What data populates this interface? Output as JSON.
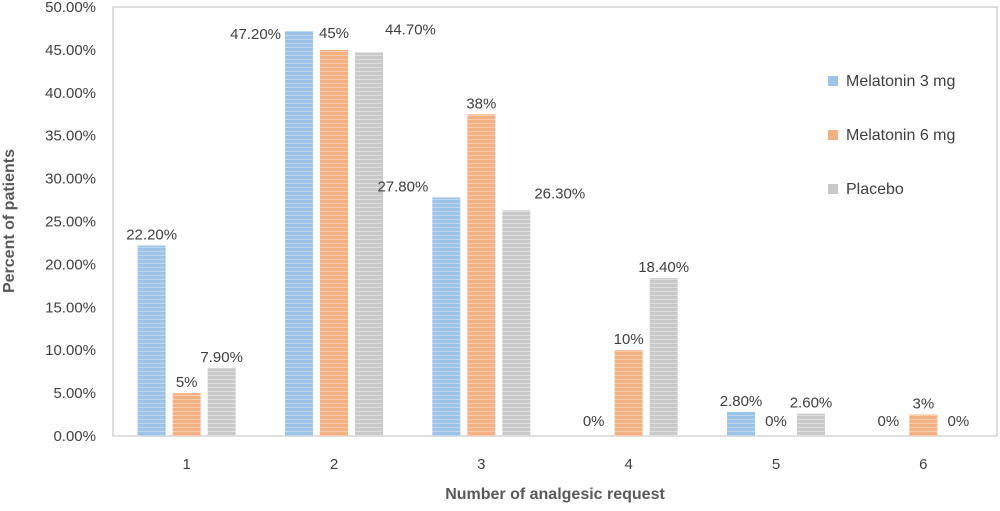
{
  "chart_data": {
    "type": "bar",
    "title": "",
    "xlabel": "Number of analgesic request",
    "ylabel": "Percent of patients",
    "categories": [
      "1",
      "2",
      "3",
      "4",
      "5",
      "6"
    ],
    "ylim": [
      0,
      50
    ],
    "yticks": [
      "0.00%",
      "5.00%",
      "10.00%",
      "15.00%",
      "20.00%",
      "25.00%",
      "30.00%",
      "35.00%",
      "40.00%",
      "45.00%",
      "50.00%"
    ],
    "series": [
      {
        "name": "Melatonin 3 mg",
        "color": "#9DC3E6",
        "values": [
          22.2,
          47.2,
          27.8,
          0,
          2.8,
          0
        ],
        "labels": [
          "22.20%",
          "47.20%",
          "27.80%",
          "0%",
          "2.80%",
          "0%"
        ]
      },
      {
        "name": "Melatonin 6 mg",
        "color": "#F4B183",
        "values": [
          5,
          45,
          37.5,
          10,
          0,
          2.5
        ],
        "labels": [
          "5%",
          "45%",
          "38%",
          "10%",
          "0%",
          "3%"
        ]
      },
      {
        "name": "Placebo",
        "color": "#C9C9C9",
        "values": [
          7.9,
          44.7,
          26.3,
          18.4,
          2.6,
          0
        ],
        "labels": [
          "7.90%",
          "44.70%",
          "26.30%",
          "18.40%",
          "2.60%",
          "0%"
        ]
      }
    ],
    "grid": false,
    "legend_position": "right"
  }
}
